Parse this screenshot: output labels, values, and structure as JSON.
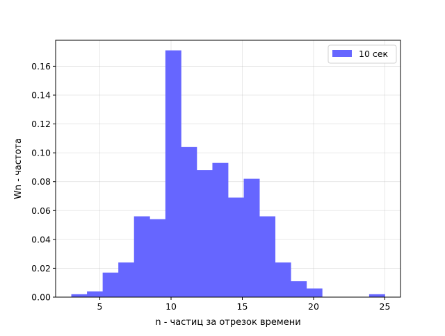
{
  "chart_data": {
    "type": "bar",
    "title": "",
    "xlabel": "n - частиц за отрезок времени",
    "ylabel": "Wn - частота",
    "xlim": [
      1.9,
      26.1
    ],
    "ylim": [
      0,
      0.178
    ],
    "grid": true,
    "legend_position": "top-right",
    "x_ticks": [
      5,
      10,
      15,
      20,
      25
    ],
    "y_ticks": [
      0.0,
      0.02,
      0.04,
      0.06,
      0.08,
      0.1,
      0.12,
      0.14,
      0.16
    ],
    "series": [
      {
        "name": "10 сек",
        "color": "#6666ff",
        "bin_edges": [
          3.0,
          4.1,
          5.2,
          6.3,
          7.4,
          8.5,
          9.6,
          10.7,
          11.8,
          12.9,
          14.0,
          15.1,
          16.2,
          17.3,
          18.4,
          19.5,
          20.6,
          21.7,
          22.8,
          23.9,
          25.0
        ],
        "values": [
          0.002,
          0.004,
          0.017,
          0.024,
          0.056,
          0.054,
          0.171,
          0.104,
          0.088,
          0.093,
          0.069,
          0.082,
          0.056,
          0.024,
          0.011,
          0.006,
          0.0,
          0.0,
          0.0,
          0.002
        ]
      }
    ]
  }
}
